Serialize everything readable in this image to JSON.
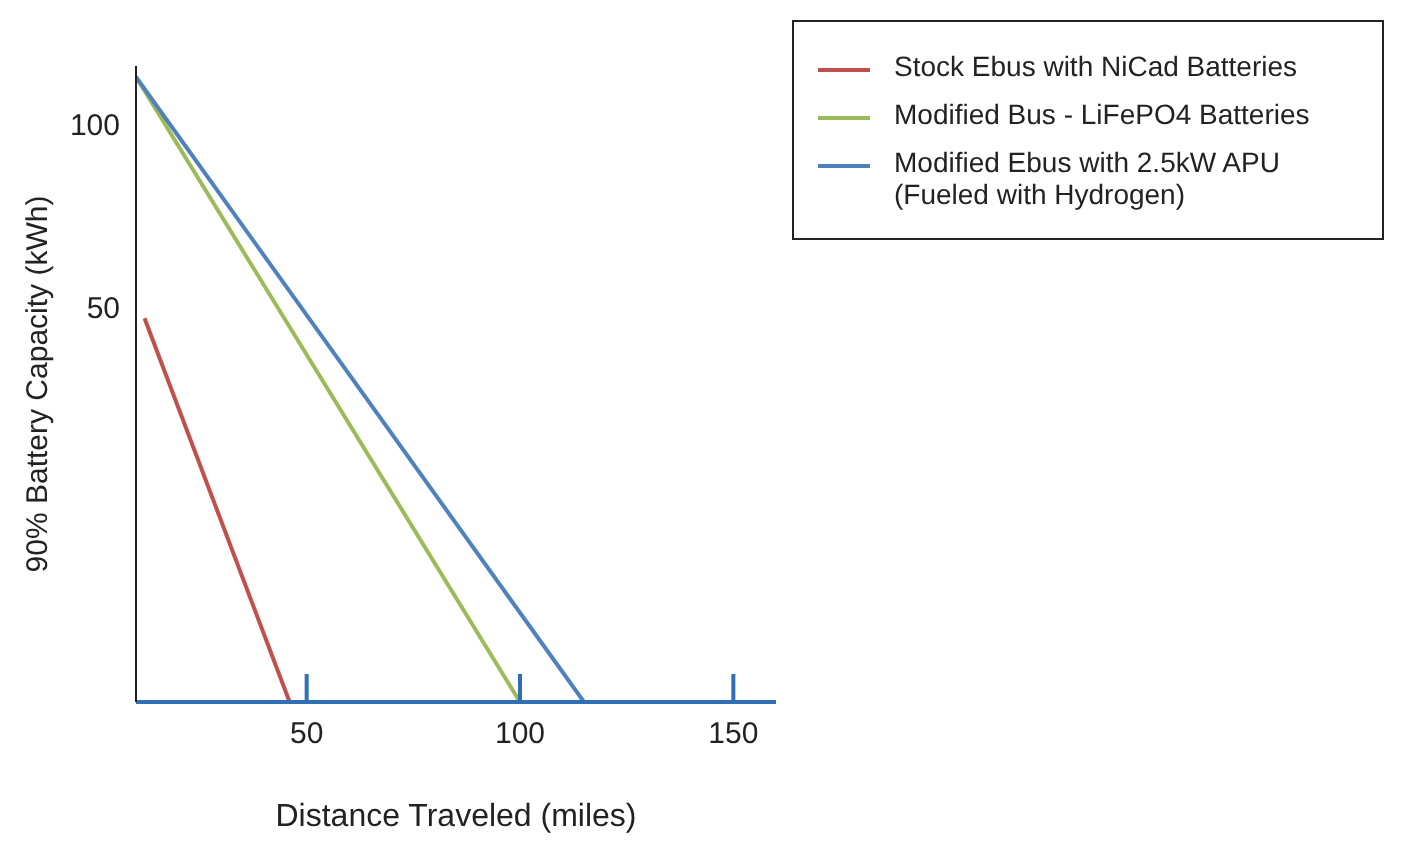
{
  "chart_data": {
    "type": "line",
    "xlabel": "Distance Traveled (miles)",
    "ylabel": "90% Battery Capacity (kWh)",
    "xlim": [
      10,
      160
    ],
    "xticks": [
      50,
      100,
      150
    ],
    "ylim": [
      -58,
      116
    ],
    "yticks": [
      50,
      100
    ],
    "legend": "top right",
    "marker": "none",
    "line_style": "solid",
    "series": [
      {
        "name": "Stock Ebus with NiCad Batteries",
        "color": "#c0504d",
        "x": [
          12,
          46
        ],
        "values": [
          47,
          -58
        ]
      },
      {
        "name": "Modified Bus - LiFePO4 Batteries",
        "color": "#9bbb59",
        "x": [
          10,
          100
        ],
        "values": [
          113,
          -58
        ]
      },
      {
        "name": "Modified Ebus with 2.5kW APU (Fueled with Hydrogen)",
        "color": "#4f81bd",
        "x": [
          10,
          115
        ],
        "values": [
          113,
          -58
        ]
      }
    ]
  }
}
